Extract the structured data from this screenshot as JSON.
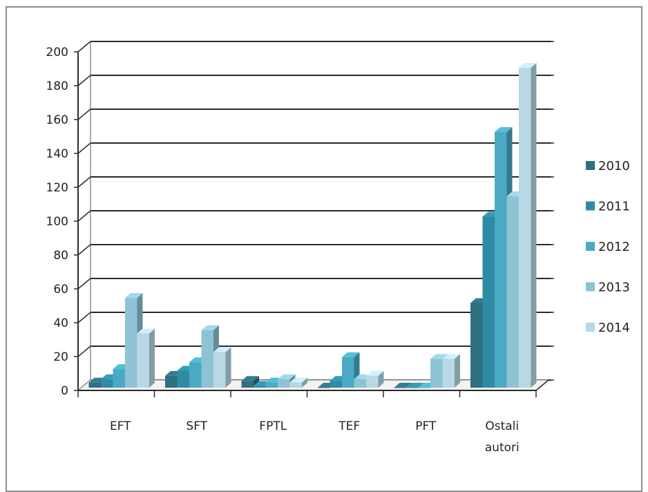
{
  "chart_data": {
    "type": "bar",
    "categories": [
      [
        "EFT"
      ],
      [
        "SFT"
      ],
      [
        "FPTL"
      ],
      [
        "TEF"
      ],
      [
        "PFT"
      ],
      [
        "Ostali",
        "autori"
      ]
    ],
    "series": [
      {
        "name": "2010",
        "color": "#2e6f80",
        "values": [
          3,
          7,
          4,
          0,
          0,
          50
        ]
      },
      {
        "name": "2011",
        "color": "#2f8ba3",
        "values": [
          5,
          10,
          1,
          4,
          0,
          101
        ]
      },
      {
        "name": "2012",
        "color": "#4aaac4",
        "values": [
          11,
          15,
          3,
          18,
          0,
          151
        ]
      },
      {
        "name": "2013",
        "color": "#8ec3d5",
        "values": [
          53,
          34,
          5,
          5,
          17,
          113
        ]
      },
      {
        "name": "2014",
        "color": "#b7d8e4",
        "values": [
          32,
          21,
          3,
          7,
          17,
          189
        ]
      }
    ],
    "ylim": [
      0,
      200
    ],
    "yticks": [
      "0",
      "20",
      "40",
      "60",
      "80",
      "100",
      "120",
      "140",
      "160",
      "180",
      "200"
    ],
    "grid": true,
    "legend_position": "right",
    "title": "",
    "xlabel": "",
    "ylabel": ""
  }
}
